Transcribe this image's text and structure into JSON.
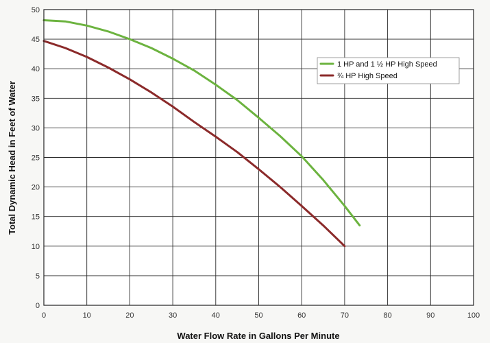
{
  "chart_data": {
    "type": "line",
    "title": "",
    "xlabel": "Water Flow Rate in Gallons Per Minute",
    "ylabel": "Total Dynamic Head in Feet of Water",
    "xlim": [
      0,
      100
    ],
    "ylim": [
      0,
      50
    ],
    "x_ticks": [
      0,
      10,
      20,
      30,
      40,
      50,
      60,
      70,
      80,
      90,
      100
    ],
    "y_ticks": [
      0,
      5,
      10,
      15,
      20,
      25,
      30,
      35,
      40,
      45,
      50
    ],
    "grid": true,
    "legend_position": "top-right",
    "series": [
      {
        "name": "1 HP and 1 ½ HP High Speed",
        "color": "#6cb33f",
        "x": [
          0,
          5,
          10,
          15,
          20,
          25,
          30,
          35,
          40,
          45,
          50,
          55,
          60,
          65,
          70,
          73.5
        ],
        "y": [
          48.2,
          48.0,
          47.3,
          46.3,
          45.0,
          43.5,
          41.7,
          39.7,
          37.3,
          34.7,
          31.7,
          28.6,
          25.2,
          21.2,
          16.8,
          13.5
        ]
      },
      {
        "name": "¾ HP High Speed",
        "color": "#8b2a2a",
        "x": [
          0,
          5,
          10,
          15,
          20,
          25,
          30,
          35,
          40,
          45,
          50,
          55,
          60,
          65,
          70
        ],
        "y": [
          44.7,
          43.5,
          42.0,
          40.2,
          38.2,
          36.0,
          33.6,
          31.0,
          28.5,
          25.9,
          23.0,
          20.0,
          16.8,
          13.5,
          10.0
        ]
      }
    ]
  }
}
